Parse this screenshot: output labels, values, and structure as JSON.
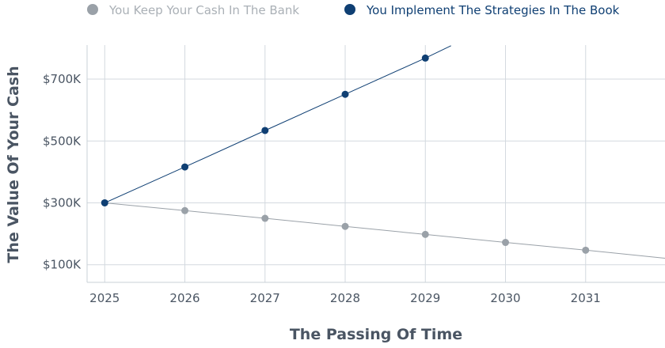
{
  "chart_data": {
    "type": "line",
    "title": "",
    "xlabel": "The Passing Of Time",
    "ylabel": "The Value Of Your Cash",
    "x": [
      2025,
      2026,
      2027,
      2028,
      2029,
      2030,
      2031
    ],
    "x_ticks": [
      "2025",
      "2026",
      "2027",
      "2028",
      "2029",
      "2030",
      "2031"
    ],
    "y_ticks": [
      {
        "value": 100000,
        "label": "$100K"
      },
      {
        "value": 300000,
        "label": "$300K"
      },
      {
        "value": 500000,
        "label": "$500K"
      },
      {
        "value": 700000,
        "label": "$700K"
      }
    ],
    "xlim": [
      2024.78,
      2031.99
    ],
    "ylim": [
      43000,
      810000
    ],
    "grid": true,
    "legend_position": "top",
    "series": [
      {
        "name": "You Keep Your Cash In The Bank",
        "color": "#9aa1a8",
        "legend_text_color": "#aab0b6",
        "x": [
          2025,
          2026,
          2027,
          2028,
          2029,
          2030,
          2031
        ],
        "values": [
          300000,
          275000,
          250000,
          224000,
          198000,
          172000,
          147000
        ],
        "trend_end": {
          "x": 2031.99,
          "y": 121000
        }
      },
      {
        "name": "You Implement The Strategies In The Book",
        "color": "#0f3f73",
        "legend_text_color": "#0f3f73",
        "x": [
          2025,
          2026,
          2027,
          2028,
          2029
        ],
        "values": [
          300000,
          416000,
          534000,
          651000,
          768000
        ],
        "trend_end": {
          "x": 2029.32,
          "y": 808000
        }
      }
    ]
  }
}
